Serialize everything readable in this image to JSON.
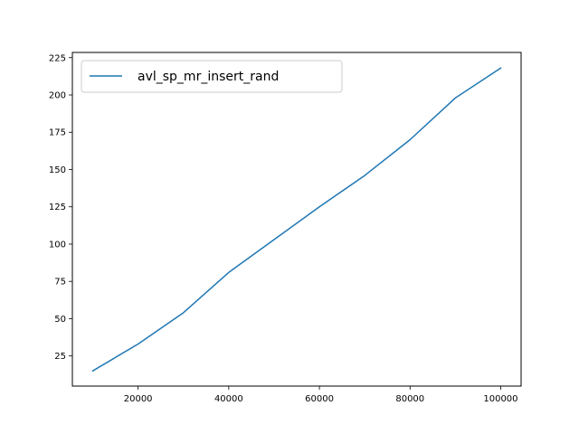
{
  "chart_data": {
    "type": "line",
    "title": "",
    "xlabel": "",
    "ylabel": "",
    "xlim": [
      5500,
      104500
    ],
    "ylim": [
      4.8,
      228.5
    ],
    "xticks": [
      20000,
      40000,
      60000,
      80000,
      100000
    ],
    "yticks": [
      25,
      50,
      75,
      100,
      125,
      150,
      175,
      200,
      225
    ],
    "grid": false,
    "legend_position": "top-left",
    "series": [
      {
        "name": "avl_sp_mr_insert_rand",
        "color": "#1f77b4",
        "x": [
          10000,
          20000,
          30000,
          40000,
          50000,
          60000,
          70000,
          80000,
          90000,
          100000
        ],
        "y": [
          15,
          33,
          54,
          81,
          103,
          125,
          146,
          170,
          198,
          218
        ]
      }
    ]
  }
}
